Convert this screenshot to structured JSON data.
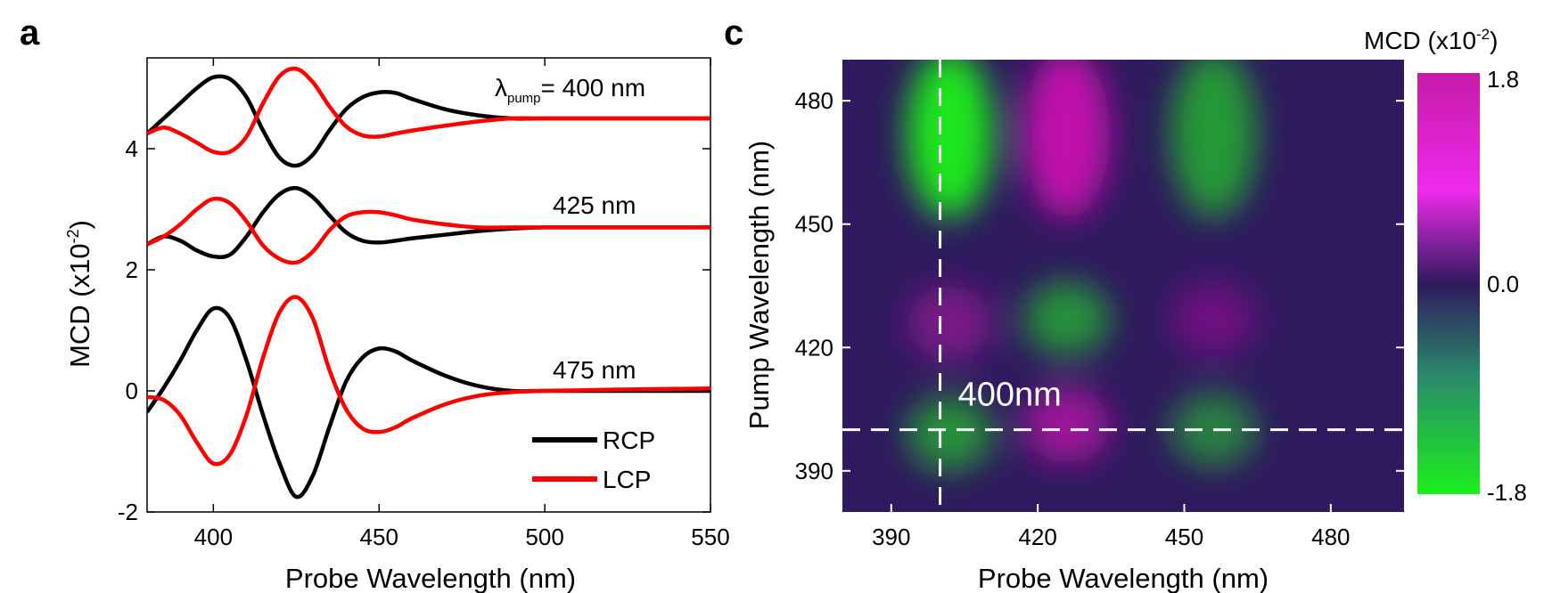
{
  "chart_data": [
    {
      "panel": "a",
      "type": "line",
      "xlabel": "Probe Wavelength (nm)",
      "ylabel_main": "MCD (x10",
      "ylabel_sup": "-2",
      "ylabel_end": ")",
      "xlim": [
        380,
        550
      ],
      "ylim": [
        -2.0,
        5.5
      ],
      "xticks": [
        400,
        450,
        500,
        550
      ],
      "yticks": [
        -2,
        0,
        2,
        4
      ],
      "colors": {
        "RCP": "#000000",
        "LCP": "#ff0000"
      },
      "legend": {
        "position": "bottom-right",
        "entries": [
          "RCP",
          "LCP"
        ]
      },
      "annotations": {
        "lambda_symbol": "λ",
        "lambda_sub": "pump",
        "lambda_rest": "= 400 nm",
        "mid": "425 nm",
        "low": "475 nm"
      },
      "x": [
        380,
        385,
        390,
        395,
        400,
        405,
        410,
        415,
        420,
        425,
        430,
        435,
        440,
        445,
        450,
        455,
        460,
        470,
        480,
        490,
        500,
        520,
        550
      ],
      "series": [
        {
          "name": "RCP",
          "group": "400 nm",
          "values": [
            4.25,
            4.5,
            4.75,
            5.0,
            5.18,
            5.15,
            4.85,
            4.3,
            3.85,
            3.72,
            3.9,
            4.3,
            4.65,
            4.85,
            4.93,
            4.92,
            4.82,
            4.65,
            4.55,
            4.5,
            4.5,
            4.5,
            4.5
          ]
        },
        {
          "name": "LCP",
          "group": "400 nm",
          "values": [
            4.25,
            4.35,
            4.25,
            4.1,
            3.95,
            3.95,
            4.2,
            4.75,
            5.2,
            5.32,
            5.1,
            4.7,
            4.37,
            4.22,
            4.2,
            4.25,
            4.3,
            4.38,
            4.45,
            4.5,
            4.5,
            4.5,
            4.5
          ]
        },
        {
          "name": "RCP",
          "group": "425 nm",
          "values": [
            2.42,
            2.55,
            2.48,
            2.32,
            2.22,
            2.25,
            2.55,
            2.95,
            3.25,
            3.35,
            3.2,
            2.9,
            2.62,
            2.48,
            2.45,
            2.48,
            2.52,
            2.58,
            2.64,
            2.68,
            2.7,
            2.7,
            2.7
          ]
        },
        {
          "name": "LCP",
          "group": "425 nm",
          "values": [
            2.42,
            2.55,
            2.75,
            3.0,
            3.17,
            3.1,
            2.8,
            2.4,
            2.18,
            2.12,
            2.3,
            2.65,
            2.88,
            2.95,
            2.95,
            2.9,
            2.83,
            2.75,
            2.7,
            2.7,
            2.7,
            2.7,
            2.7
          ]
        },
        {
          "name": "RCP",
          "group": "475 nm",
          "values": [
            -0.35,
            0.05,
            0.5,
            1.0,
            1.36,
            1.2,
            0.5,
            -0.4,
            -1.2,
            -1.75,
            -1.4,
            -0.6,
            0.15,
            0.55,
            0.7,
            0.65,
            0.5,
            0.25,
            0.08,
            0.0,
            0.0,
            0.0,
            0.0
          ]
        },
        {
          "name": "LCP",
          "group": "475 nm",
          "values": [
            -0.1,
            -0.15,
            -0.4,
            -0.85,
            -1.2,
            -1.05,
            -0.4,
            0.55,
            1.3,
            1.55,
            1.2,
            0.35,
            -0.3,
            -0.62,
            -0.68,
            -0.6,
            -0.45,
            -0.22,
            -0.08,
            -0.02,
            0.0,
            0.02,
            0.04
          ]
        }
      ]
    },
    {
      "panel": "c",
      "type": "heatmap",
      "xlabel": "Probe Wavelength (nm)",
      "ylabel": "Pump Wavelength (nm)",
      "xlim": [
        380,
        495
      ],
      "ylim": [
        380,
        490
      ],
      "xticks": [
        390,
        420,
        450,
        480
      ],
      "yticks": [
        390,
        420,
        450,
        480
      ],
      "colorbar": {
        "title_main": "MCD (x10",
        "title_sup": "-2",
        "title_end": ")",
        "ticks": [
          "1.8",
          "0.0",
          "-1.8"
        ],
        "range": [
          -1.8,
          1.8
        ],
        "colors": {
          "high": "#d60fb6",
          "mid": "#2e1a5e",
          "low": "#1de61d"
        }
      },
      "marker_label": "400nm",
      "marker_x": 400,
      "marker_y": 400,
      "blobs": [
        {
          "x": 402,
          "y": 472,
          "value": -1.8
        },
        {
          "x": 426,
          "y": 472,
          "value": 1.5
        },
        {
          "x": 456,
          "y": 472,
          "value": -0.9
        },
        {
          "x": 402,
          "y": 426,
          "value": 0.5
        },
        {
          "x": 426,
          "y": 427,
          "value": -0.8
        },
        {
          "x": 456,
          "y": 427,
          "value": 0.3
        },
        {
          "x": 402,
          "y": 399,
          "value": -0.8
        },
        {
          "x": 426,
          "y": 401,
          "value": 1.0
        },
        {
          "x": 456,
          "y": 400,
          "value": -0.6
        }
      ]
    }
  ],
  "labels": {
    "panel_a": "a",
    "panel_c": "c"
  }
}
